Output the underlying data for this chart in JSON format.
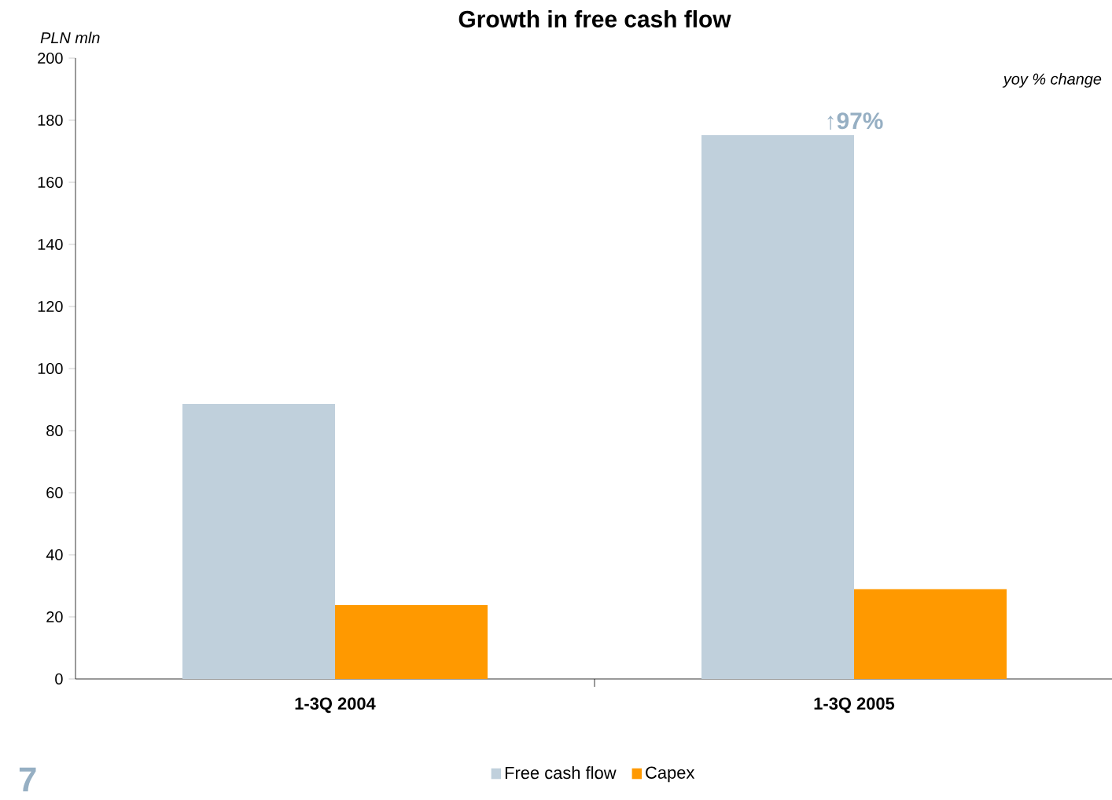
{
  "chart_data": {
    "type": "bar",
    "title": "Growth in free cash flow",
    "ylabel": "PLN mln",
    "categories": [
      "1-3Q 2004",
      "1-3Q 2005"
    ],
    "series": [
      {
        "name": "Free cash flow",
        "color": "#c0d0dc",
        "values": [
          88.6,
          175.2
        ]
      },
      {
        "name": "Capex",
        "color": "#ff9900",
        "values": [
          23.8,
          28.9
        ]
      }
    ],
    "ylim": [
      0,
      200
    ],
    "yticks": [
      0,
      20,
      40,
      60,
      80,
      100,
      120,
      140,
      160,
      180,
      200
    ],
    "annotations": [
      {
        "text": "↑97%",
        "x": "1-3Q 2005",
        "y": 175.2
      },
      "yoy % change",
      "7"
    ],
    "legend": "bottom",
    "grid": false
  }
}
